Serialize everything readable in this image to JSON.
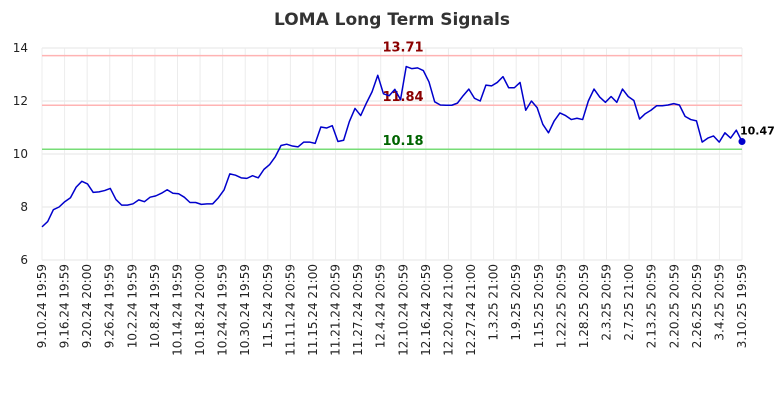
{
  "chart_data": {
    "type": "line",
    "title": "LOMA Long Term Signals",
    "xlabel": "",
    "ylabel": "",
    "ylim": [
      6,
      14
    ],
    "y_ticks": [
      "6",
      "8",
      "10",
      "12",
      "14"
    ],
    "grid": true,
    "legend": "none",
    "x_tick_labels": [
      "9.10.24 19:59",
      "9.16.24 19:59",
      "9.20.24 20:00",
      "9.26.24 19:59",
      "10.2.24 19:59",
      "10.8.24 19:59",
      "10.14.24 19:59",
      "10.18.24 20:00",
      "10.24.24 19:59",
      "10.30.24 19:59",
      "11.5.24 20:59",
      "11.11.24 20:59",
      "11.15.24 21:00",
      "11.21.24 20:59",
      "11.27.24 20:59",
      "12.4.24 20:59",
      "12.10.24 20:59",
      "12.16.24 20:59",
      "12.20.24 21:00",
      "12.27.24 21:00",
      "1.3.25 21:00",
      "1.9.25 20:59",
      "1.15.25 20:59",
      "1.22.25 20:59",
      "1.28.25 20:59",
      "2.3.25 20:59",
      "2.7.25 21:00",
      "2.13.25 20:59",
      "2.20.25 20:59",
      "2.26.25 20:59",
      "3.4.25 20:59",
      "3.10.25 19:59"
    ],
    "series": [
      {
        "values": [
          7.25,
          7.45,
          7.9,
          8.0,
          8.2,
          8.35,
          8.75,
          8.97,
          8.87,
          8.55,
          8.57,
          8.62,
          8.7,
          8.28,
          8.07,
          8.07,
          8.12,
          8.27,
          8.2,
          8.37,
          8.42,
          8.52,
          8.65,
          8.52,
          8.5,
          8.37,
          8.17,
          8.17,
          8.1,
          8.12,
          8.12,
          8.35,
          8.65,
          9.25,
          9.2,
          9.1,
          9.08,
          9.18,
          9.1,
          9.42,
          9.6,
          9.9,
          10.32,
          10.37,
          10.3,
          10.27,
          10.45,
          10.45,
          10.4,
          11.02,
          10.98,
          11.07,
          10.47,
          10.52,
          11.22,
          11.72,
          11.45,
          11.92,
          12.35,
          12.97,
          12.27,
          12.2,
          12.44,
          12.05,
          13.3,
          13.22,
          13.25,
          13.15,
          12.72,
          11.97,
          11.85,
          11.84,
          11.84,
          11.92,
          12.2,
          12.45,
          12.1,
          12.0,
          12.6,
          12.57,
          12.7,
          12.92,
          12.5,
          12.5,
          12.7,
          11.65,
          12.0,
          11.75,
          11.12,
          10.8,
          11.25,
          11.55,
          11.45,
          11.3,
          11.35,
          11.3,
          12.0,
          12.45,
          12.15,
          11.95,
          12.17,
          11.95,
          12.45,
          12.17,
          12.02,
          11.32,
          11.52,
          11.65,
          11.82,
          11.82,
          11.85,
          11.9,
          11.85,
          11.42,
          11.3,
          11.25,
          10.45,
          10.6,
          10.68,
          10.45,
          10.8,
          10.6,
          10.9,
          10.47
        ],
        "color": "#0000cc"
      }
    ],
    "reference_lines": [
      {
        "value": 13.71,
        "label": "13.71",
        "line_color": "#ffb3b3",
        "label_color": "#8b0000"
      },
      {
        "value": 11.84,
        "label": "11.84",
        "line_color": "#ffb3b3",
        "label_color": "#8b0000"
      },
      {
        "value": 10.18,
        "label": "10.18",
        "line_color": "#77dd77",
        "label_color": "#006400"
      }
    ],
    "last_point": {
      "value": 10.47,
      "label": "10.47",
      "color": "#0000cc"
    }
  }
}
